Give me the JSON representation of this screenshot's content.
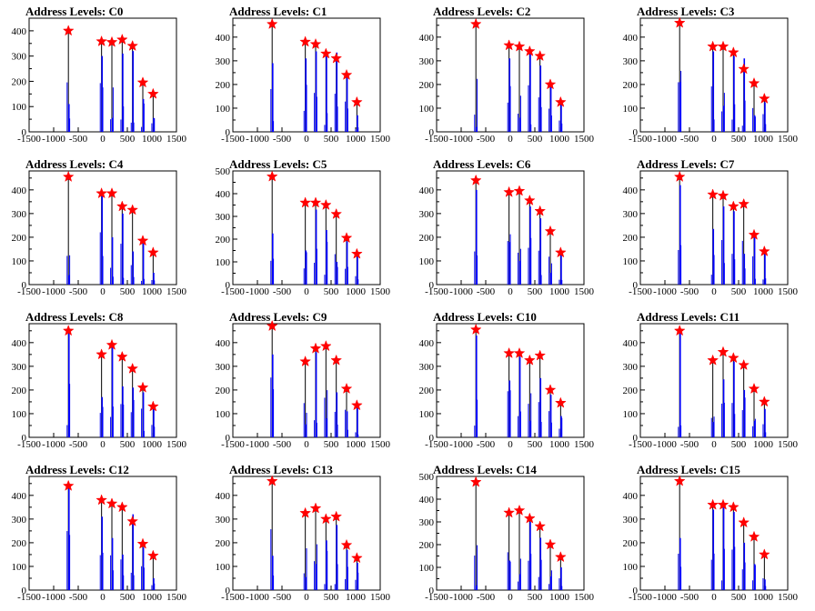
{
  "chart_data": [
    {
      "type": "histogram",
      "title": "Address Levels: C0",
      "xlim": [
        -1500,
        1500
      ],
      "ylim": [
        0,
        450
      ],
      "yticks": [
        0,
        100,
        200,
        300,
        400
      ],
      "xticks": [
        -1500,
        -1000,
        -500,
        0,
        500,
        1000,
        1500
      ],
      "peaks": [
        {
          "x": -700,
          "y": 400,
          "blue": 110
        },
        {
          "x": -25,
          "y": 358,
          "blue": 300
        },
        {
          "x": 185,
          "y": 355,
          "blue": 55
        },
        {
          "x": 395,
          "y": 365,
          "blue": 310
        },
        {
          "x": 605,
          "y": 340,
          "blue": 320
        },
        {
          "x": 815,
          "y": 195,
          "blue": 130
        },
        {
          "x": 1025,
          "y": 150,
          "blue": 55
        }
      ]
    },
    {
      "type": "histogram",
      "title": "Address Levels: C1",
      "xlim": [
        -1500,
        1500
      ],
      "ylim": [
        0,
        480
      ],
      "yticks": [
        0,
        100,
        200,
        300,
        400
      ],
      "xticks": [
        -1500,
        -1000,
        -500,
        0,
        500,
        1000,
        1500
      ],
      "peaks": [
        {
          "x": -700,
          "y": 455,
          "blue": 290
        },
        {
          "x": -25,
          "y": 380,
          "blue": 310
        },
        {
          "x": 185,
          "y": 370,
          "blue": 340
        },
        {
          "x": 395,
          "y": 330,
          "blue": 320
        },
        {
          "x": 605,
          "y": 310,
          "blue": 335
        },
        {
          "x": 815,
          "y": 240,
          "blue": 230
        },
        {
          "x": 1025,
          "y": 125,
          "blue": 70
        }
      ]
    },
    {
      "type": "histogram",
      "title": "Address Levels: C2",
      "xlim": [
        -1500,
        1500
      ],
      "ylim": [
        0,
        480
      ],
      "yticks": [
        0,
        100,
        200,
        300,
        400
      ],
      "xticks": [
        -1500,
        -1000,
        -500,
        0,
        500,
        1000,
        1500
      ],
      "peaks": [
        {
          "x": -700,
          "y": 455,
          "blue": 20
        },
        {
          "x": -25,
          "y": 365,
          "blue": 310
        },
        {
          "x": 185,
          "y": 360,
          "blue": 60
        },
        {
          "x": 395,
          "y": 340,
          "blue": 330
        },
        {
          "x": 605,
          "y": 320,
          "blue": 280
        },
        {
          "x": 815,
          "y": 200,
          "blue": 200
        },
        {
          "x": 1025,
          "y": 125,
          "blue": 130
        }
      ]
    },
    {
      "type": "histogram",
      "title": "Address Levels: C3",
      "xlim": [
        -1500,
        1500
      ],
      "ylim": [
        0,
        480
      ],
      "yticks": [
        0,
        100,
        200,
        300,
        400
      ],
      "xticks": [
        -1500,
        -1000,
        -500,
        0,
        500,
        1000,
        1500
      ],
      "peaks": [
        {
          "x": -700,
          "y": 460,
          "blue": 210
        },
        {
          "x": -25,
          "y": 360,
          "blue": 340
        },
        {
          "x": 185,
          "y": 360,
          "blue": 110
        },
        {
          "x": 395,
          "y": 335,
          "blue": 320
        },
        {
          "x": 605,
          "y": 265,
          "blue": 310
        },
        {
          "x": 815,
          "y": 205,
          "blue": 70
        },
        {
          "x": 1025,
          "y": 140,
          "blue": 125
        }
      ]
    },
    {
      "type": "histogram",
      "title": "Address Levels: C4",
      "xlim": [
        -1500,
        1500
      ],
      "ylim": [
        0,
        480
      ],
      "yticks": [
        0,
        100,
        200,
        300,
        400
      ],
      "xticks": [
        -1500,
        -1000,
        -500,
        0,
        500,
        1000,
        1500
      ],
      "peaks": [
        {
          "x": -700,
          "y": 455,
          "blue": 40
        },
        {
          "x": -25,
          "y": 385,
          "blue": 375
        },
        {
          "x": 185,
          "y": 385,
          "blue": 200
        },
        {
          "x": 395,
          "y": 330,
          "blue": 300
        },
        {
          "x": 605,
          "y": 315,
          "blue": 140
        },
        {
          "x": 815,
          "y": 185,
          "blue": 185
        },
        {
          "x": 1025,
          "y": 135,
          "blue": 50
        }
      ]
    },
    {
      "type": "histogram",
      "title": "Address Levels: C5",
      "xlim": [
        -1500,
        1500
      ],
      "ylim": [
        0,
        500
      ],
      "yticks": [
        0,
        100,
        200,
        300,
        400,
        500
      ],
      "xticks": [
        -1500,
        -1000,
        -500,
        0,
        500,
        1000,
        1500
      ],
      "peaks": [
        {
          "x": -700,
          "y": 475,
          "blue": 225
        },
        {
          "x": -25,
          "y": 360,
          "blue": 150
        },
        {
          "x": 185,
          "y": 360,
          "blue": 330
        },
        {
          "x": 395,
          "y": 350,
          "blue": 240
        },
        {
          "x": 605,
          "y": 310,
          "blue": 100
        },
        {
          "x": 815,
          "y": 205,
          "blue": 190
        },
        {
          "x": 1025,
          "y": 135,
          "blue": 135
        }
      ]
    },
    {
      "type": "histogram",
      "title": "Address Levels: C6",
      "xlim": [
        -1500,
        1500
      ],
      "ylim": [
        0,
        480
      ],
      "yticks": [
        0,
        100,
        200,
        300,
        400
      ],
      "xticks": [
        -1500,
        -1000,
        -500,
        0,
        500,
        1000,
        1500
      ],
      "peaks": [
        {
          "x": -700,
          "y": 440,
          "blue": 400
        },
        {
          "x": -25,
          "y": 390,
          "blue": 180
        },
        {
          "x": 185,
          "y": 395,
          "blue": 100
        },
        {
          "x": 395,
          "y": 355,
          "blue": 330
        },
        {
          "x": 605,
          "y": 310,
          "blue": 280
        },
        {
          "x": 815,
          "y": 225,
          "blue": 50
        },
        {
          "x": 1025,
          "y": 135,
          "blue": 130
        }
      ]
    },
    {
      "type": "histogram",
      "title": "Address Levels: C7",
      "xlim": [
        -1500,
        1500
      ],
      "ylim": [
        0,
        480
      ],
      "yticks": [
        0,
        100,
        200,
        300,
        400
      ],
      "xticks": [
        -1500,
        -1000,
        -500,
        0,
        500,
        1000,
        1500
      ],
      "peaks": [
        {
          "x": -700,
          "y": 455,
          "blue": 420
        },
        {
          "x": -25,
          "y": 380,
          "blue": 235
        },
        {
          "x": 185,
          "y": 375,
          "blue": 330
        },
        {
          "x": 395,
          "y": 330,
          "blue": 310
        },
        {
          "x": 605,
          "y": 340,
          "blue": 130
        },
        {
          "x": 815,
          "y": 210,
          "blue": 200
        },
        {
          "x": 1025,
          "y": 140,
          "blue": 140
        }
      ]
    },
    {
      "type": "histogram",
      "title": "Address Levels: C8",
      "xlim": [
        -1500,
        1500
      ],
      "ylim": [
        0,
        480
      ],
      "yticks": [
        0,
        100,
        200,
        300,
        400
      ],
      "xticks": [
        -1500,
        -1000,
        -500,
        0,
        500,
        1000,
        1500
      ],
      "peaks": [
        {
          "x": -700,
          "y": 450,
          "blue": 440
        },
        {
          "x": -25,
          "y": 350,
          "blue": 170
        },
        {
          "x": 185,
          "y": 390,
          "blue": 380
        },
        {
          "x": 395,
          "y": 340,
          "blue": 215
        },
        {
          "x": 605,
          "y": 290,
          "blue": 210
        },
        {
          "x": 815,
          "y": 210,
          "blue": 190
        },
        {
          "x": 1025,
          "y": 130,
          "blue": 130
        }
      ]
    },
    {
      "type": "histogram",
      "title": "Address Levels: C9",
      "xlim": [
        -1500,
        1500
      ],
      "ylim": [
        0,
        480
      ],
      "yticks": [
        0,
        100,
        200,
        300,
        400
      ],
      "xticks": [
        -1500,
        -1000,
        -500,
        0,
        500,
        1000,
        1500
      ],
      "peaks": [
        {
          "x": -700,
          "y": 470,
          "blue": 350
        },
        {
          "x": -25,
          "y": 320,
          "blue": 55
        },
        {
          "x": 185,
          "y": 375,
          "blue": 360
        },
        {
          "x": 395,
          "y": 385,
          "blue": 80
        },
        {
          "x": 605,
          "y": 325,
          "blue": 190
        },
        {
          "x": 815,
          "y": 205,
          "blue": 110
        },
        {
          "x": 1025,
          "y": 135,
          "blue": 130
        }
      ]
    },
    {
      "type": "histogram",
      "title": "Address Levels: C10",
      "xlim": [
        -1500,
        1500
      ],
      "ylim": [
        0,
        480
      ],
      "yticks": [
        0,
        100,
        200,
        300,
        400
      ],
      "xticks": [
        -1500,
        -1000,
        -500,
        0,
        500,
        1000,
        1500
      ],
      "peaks": [
        {
          "x": -700,
          "y": 455,
          "blue": 430
        },
        {
          "x": -25,
          "y": 355,
          "blue": 240
        },
        {
          "x": 185,
          "y": 355,
          "blue": 340
        },
        {
          "x": 395,
          "y": 325,
          "blue": 70
        },
        {
          "x": 605,
          "y": 345,
          "blue": 250
        },
        {
          "x": 815,
          "y": 200,
          "blue": 180
        },
        {
          "x": 1025,
          "y": 145,
          "blue": 90
        }
      ]
    },
    {
      "type": "histogram",
      "title": "Address Levels: C11",
      "xlim": [
        -1500,
        1500
      ],
      "ylim": [
        0,
        480
      ],
      "yticks": [
        0,
        100,
        200,
        300,
        400
      ],
      "xticks": [
        -1500,
        -1000,
        -500,
        0,
        500,
        1000,
        1500
      ],
      "peaks": [
        {
          "x": -700,
          "y": 450,
          "blue": 440
        },
        {
          "x": -25,
          "y": 325,
          "blue": 65
        },
        {
          "x": 185,
          "y": 360,
          "blue": 245
        },
        {
          "x": 395,
          "y": 335,
          "blue": 320
        },
        {
          "x": 605,
          "y": 305,
          "blue": 200
        },
        {
          "x": 815,
          "y": 205,
          "blue": 70
        },
        {
          "x": 1025,
          "y": 150,
          "blue": 120
        }
      ]
    },
    {
      "type": "histogram",
      "title": "Address Levels: C12",
      "xlim": [
        -1500,
        1500
      ],
      "ylim": [
        0,
        480
      ],
      "yticks": [
        0,
        100,
        200,
        300,
        400
      ],
      "xticks": [
        -1500,
        -1000,
        -500,
        0,
        500,
        1000,
        1500
      ],
      "peaks": [
        {
          "x": -700,
          "y": 440,
          "blue": 430
        },
        {
          "x": -25,
          "y": 380,
          "blue": 310
        },
        {
          "x": 185,
          "y": 365,
          "blue": 220
        },
        {
          "x": 395,
          "y": 350,
          "blue": 150
        },
        {
          "x": 605,
          "y": 290,
          "blue": 320
        },
        {
          "x": 815,
          "y": 195,
          "blue": 180
        },
        {
          "x": 1025,
          "y": 145,
          "blue": 50
        }
      ]
    },
    {
      "type": "histogram",
      "title": "Address Levels: C13",
      "xlim": [
        -1500,
        1500
      ],
      "ylim": [
        0,
        480
      ],
      "yticks": [
        0,
        100,
        200,
        300,
        400
      ],
      "xticks": [
        -1500,
        -1000,
        -500,
        0,
        500,
        1000,
        1500
      ],
      "peaks": [
        {
          "x": -700,
          "y": 460,
          "blue": 145
        },
        {
          "x": -25,
          "y": 325,
          "blue": 55
        },
        {
          "x": 185,
          "y": 345,
          "blue": 110
        },
        {
          "x": 395,
          "y": 300,
          "blue": 210
        },
        {
          "x": 605,
          "y": 310,
          "blue": 275
        },
        {
          "x": 815,
          "y": 190,
          "blue": 170
        },
        {
          "x": 1025,
          "y": 135,
          "blue": 115
        }
      ]
    },
    {
      "type": "histogram",
      "title": "Address Levels: C14",
      "xlim": [
        -1500,
        1500
      ],
      "ylim": [
        0,
        500
      ],
      "yticks": [
        0,
        100,
        200,
        300,
        400,
        500
      ],
      "xticks": [
        -1500,
        -1000,
        -500,
        0,
        500,
        1000,
        1500
      ],
      "peaks": [
        {
          "x": -700,
          "y": 475,
          "blue": 20
        },
        {
          "x": -25,
          "y": 340,
          "blue": 130
        },
        {
          "x": 185,
          "y": 350,
          "blue": 70
        },
        {
          "x": 395,
          "y": 315,
          "blue": 300
        },
        {
          "x": 605,
          "y": 280,
          "blue": 230
        },
        {
          "x": 815,
          "y": 200,
          "blue": 60
        },
        {
          "x": 1025,
          "y": 145,
          "blue": 100
        }
      ]
    },
    {
      "type": "histogram",
      "title": "Address Levels: C15",
      "xlim": [
        -1500,
        1500
      ],
      "ylim": [
        0,
        480
      ],
      "yticks": [
        0,
        100,
        200,
        300,
        400
      ],
      "xticks": [
        -1500,
        -1000,
        -500,
        0,
        500,
        1000,
        1500
      ],
      "peaks": [
        {
          "x": -700,
          "y": 460,
          "blue": 220
        },
        {
          "x": -25,
          "y": 360,
          "blue": 340
        },
        {
          "x": 185,
          "y": 360,
          "blue": 350
        },
        {
          "x": 395,
          "y": 350,
          "blue": 330
        },
        {
          "x": 605,
          "y": 285,
          "blue": 200
        },
        {
          "x": 815,
          "y": 225,
          "blue": 110
        },
        {
          "x": 1025,
          "y": 150,
          "blue": 45
        }
      ]
    }
  ],
  "colors": {
    "histogram_blue": "#0000ff",
    "peak_marker": "#ff0000",
    "axis": "#000000"
  }
}
